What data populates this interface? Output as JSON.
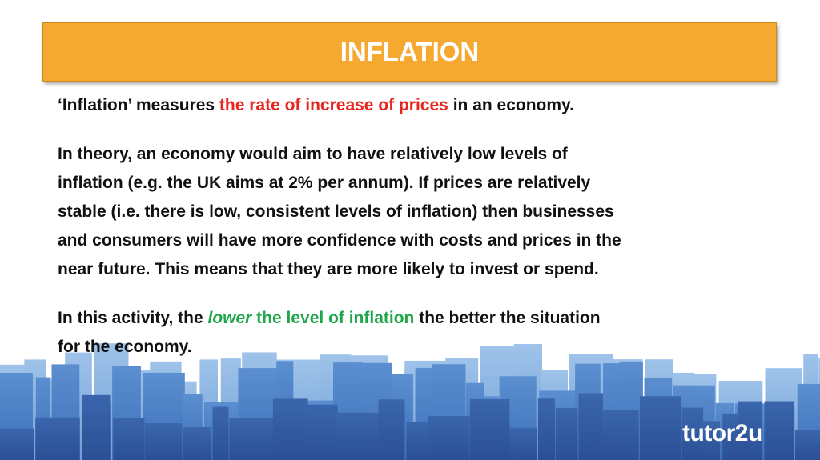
{
  "header": {
    "title": "INFLATION"
  },
  "paragraphs": [
    {
      "lines": [
        [
          {
            "text": "‘Inflation’ measures "
          },
          {
            "text": "the rate of increase of prices",
            "color": "#e8261f"
          },
          {
            "text": " in an economy."
          }
        ]
      ]
    },
    {
      "lines": [
        [
          {
            "text": "In theory, an economy would aim to have relatively low levels of"
          }
        ],
        [
          {
            "text": "inflation (e.g. the UK aims at 2% per annum).  If prices are relatively"
          }
        ],
        [
          {
            "text": "stable (i.e. there is low, consistent levels of inflation) then businesses"
          }
        ],
        [
          {
            "text": "and consumers will have more confidence with costs and prices in the"
          }
        ],
        [
          {
            "text": "near future.  This means that they are more likely to invest or spend."
          }
        ]
      ]
    },
    {
      "lines": [
        [
          {
            "text": "In this activity, the "
          },
          {
            "text": "lower",
            "color": "#1fa64a",
            "italic": true
          },
          {
            "text": " the level of inflation",
            "color": "#1fa64a"
          },
          {
            "text": " the better the situation"
          }
        ],
        [
          {
            "text": "for the economy."
          }
        ]
      ]
    }
  ],
  "logo": "tutor2u"
}
